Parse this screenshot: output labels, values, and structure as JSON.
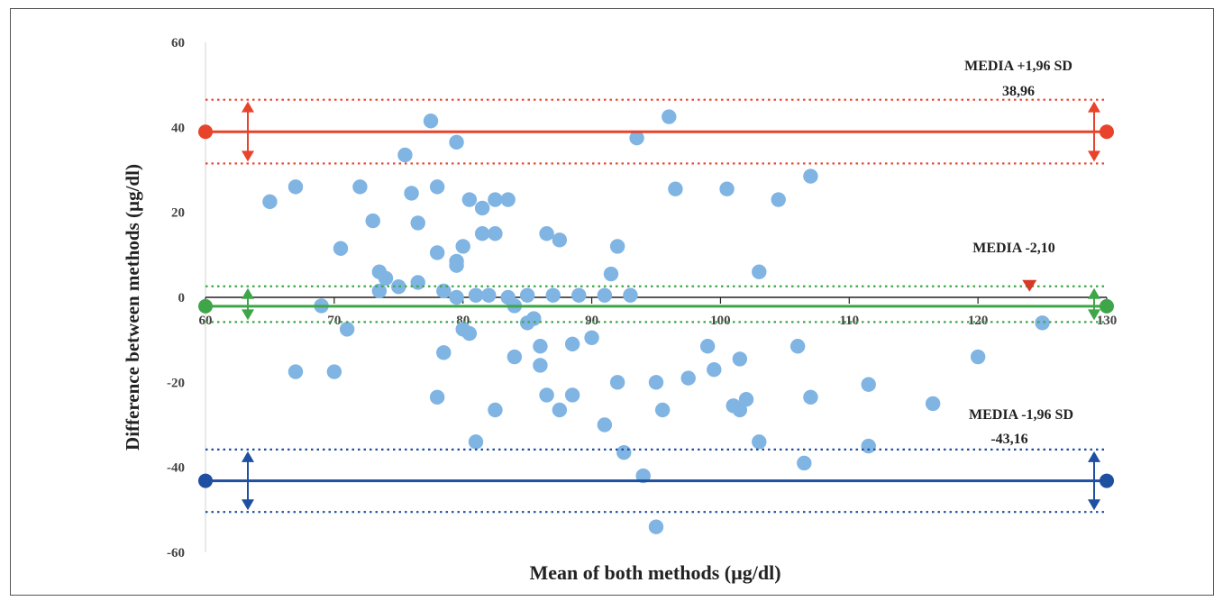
{
  "chart_data": {
    "type": "scatter",
    "xlabel": "Mean of both methods (µg/dl)",
    "ylabel": "Difference between methods (µg/dl)",
    "xlim": [
      60,
      130
    ],
    "ylim": [
      -60,
      60
    ],
    "x_ticks": [
      60,
      70,
      80,
      90,
      100,
      110,
      120,
      130
    ],
    "y_ticks": [
      60,
      40,
      20,
      0,
      -20,
      -40,
      -60
    ],
    "grid": false,
    "point_color": "#7fb4e3",
    "lines": {
      "upper": {
        "value": 38.96,
        "color": "#e8432b",
        "ci": [
          31.5,
          46.5
        ],
        "label": "MEDIA +1,96 SD",
        "value_label": "38,96"
      },
      "mean": {
        "value": -2.1,
        "color": "#3ea648",
        "ci": [
          -5.8,
          2.6
        ],
        "label": "MEDIA -2,10"
      },
      "lower": {
        "value": -43.16,
        "color": "#1e4fa0",
        "ci": [
          -50.5,
          -35.8
        ],
        "label": "MEDIA -1,96 SD",
        "value_label": "-43,16"
      }
    },
    "marker_color": "#d63a28",
    "points": [
      [
        65.0,
        22.5
      ],
      [
        67.0,
        26.0
      ],
      [
        67.0,
        -17.5
      ],
      [
        69.0,
        -2.0
      ],
      [
        70.0,
        -17.5
      ],
      [
        70.5,
        11.5
      ],
      [
        71.0,
        -7.5
      ],
      [
        72.0,
        26.0
      ],
      [
        73.0,
        18.0
      ],
      [
        73.5,
        6.0
      ],
      [
        73.5,
        1.5
      ],
      [
        74.0,
        4.5
      ],
      [
        75.0,
        2.5
      ],
      [
        75.5,
        33.5
      ],
      [
        76.0,
        24.5
      ],
      [
        76.5,
        17.5
      ],
      [
        76.5,
        3.5
      ],
      [
        77.5,
        41.5
      ],
      [
        78.0,
        26.0
      ],
      [
        78.0,
        10.5
      ],
      [
        78.0,
        -23.5
      ],
      [
        78.5,
        -13.0
      ],
      [
        78.5,
        1.5
      ],
      [
        79.5,
        36.5
      ],
      [
        79.5,
        8.5
      ],
      [
        79.5,
        7.5
      ],
      [
        79.5,
        0.0
      ],
      [
        80.0,
        12.0
      ],
      [
        80.0,
        -7.5
      ],
      [
        80.5,
        23.0
      ],
      [
        80.5,
        -8.5
      ],
      [
        81.0,
        0.5
      ],
      [
        81.0,
        -34.0
      ],
      [
        81.5,
        21.0
      ],
      [
        81.5,
        15.0
      ],
      [
        82.0,
        0.5
      ],
      [
        82.5,
        23.0
      ],
      [
        82.5,
        15.0
      ],
      [
        82.5,
        -26.5
      ],
      [
        83.5,
        23.0
      ],
      [
        83.5,
        0.0
      ],
      [
        84.0,
        -2.0
      ],
      [
        84.0,
        -14.0
      ],
      [
        85.0,
        0.5
      ],
      [
        85.0,
        -6.0
      ],
      [
        85.5,
        -5.0
      ],
      [
        86.0,
        -11.5
      ],
      [
        86.0,
        -16.0
      ],
      [
        86.5,
        15.0
      ],
      [
        86.5,
        -23.0
      ],
      [
        87.0,
        0.5
      ],
      [
        87.5,
        13.5
      ],
      [
        87.5,
        -26.5
      ],
      [
        88.5,
        -11.0
      ],
      [
        88.5,
        -23.0
      ],
      [
        89.0,
        0.5
      ],
      [
        90.0,
        -9.5
      ],
      [
        91.0,
        0.5
      ],
      [
        91.0,
        -30.0
      ],
      [
        91.5,
        5.5
      ],
      [
        92.0,
        12.0
      ],
      [
        92.0,
        -20.0
      ],
      [
        92.5,
        -36.5
      ],
      [
        93.0,
        0.5
      ],
      [
        93.5,
        37.5
      ],
      [
        94.0,
        -42.0
      ],
      [
        95.0,
        -20.0
      ],
      [
        95.0,
        -54.0
      ],
      [
        95.5,
        -26.5
      ],
      [
        96.0,
        42.5
      ],
      [
        96.5,
        25.5
      ],
      [
        97.5,
        -19.0
      ],
      [
        99.0,
        -11.5
      ],
      [
        99.5,
        -17.0
      ],
      [
        100.5,
        25.5
      ],
      [
        101.0,
        -25.5
      ],
      [
        101.5,
        -14.5
      ],
      [
        101.5,
        -26.5
      ],
      [
        102.0,
        -24.0
      ],
      [
        103.0,
        6.0
      ],
      [
        103.0,
        -34.0
      ],
      [
        104.5,
        23.0
      ],
      [
        106.0,
        -11.5
      ],
      [
        106.5,
        -39.0
      ],
      [
        107.0,
        28.5
      ],
      [
        107.0,
        -23.5
      ],
      [
        111.5,
        -20.5
      ],
      [
        111.5,
        -35.0
      ],
      [
        116.5,
        -25.0
      ],
      [
        120.0,
        -14.0
      ],
      [
        125.0,
        -6.0
      ]
    ]
  }
}
